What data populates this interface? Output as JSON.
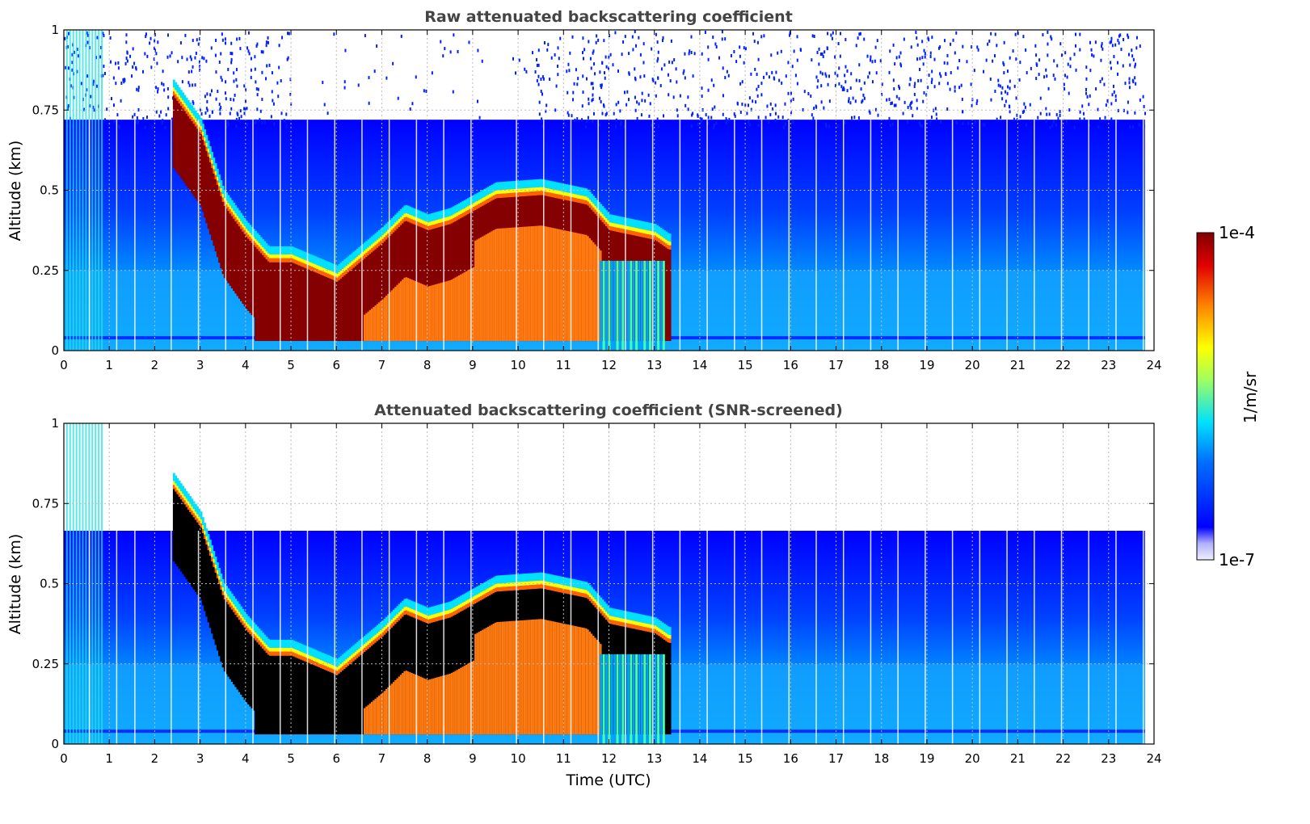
{
  "chart_data": [
    {
      "type": "heatmap",
      "title": "Raw attenuated backscattering coefficient",
      "xlabel": "",
      "ylabel": "Altitude (km)",
      "xlim": [
        0,
        24
      ],
      "ylim": [
        0,
        1
      ],
      "x_ticks": [
        "0",
        "1",
        "2",
        "3",
        "4",
        "5",
        "6",
        "7",
        "8",
        "9",
        "10",
        "11",
        "12",
        "13",
        "14",
        "15",
        "16",
        "17",
        "18",
        "19",
        "20",
        "21",
        "22",
        "23",
        "24"
      ],
      "y_ticks": [
        "0",
        "0.25",
        "0.5",
        "0.75",
        "1"
      ],
      "grid": true,
      "screened": false,
      "boundary_layer_top_km": [
        {
          "t": 2.4,
          "z": 0.82
        },
        {
          "t": 3.0,
          "z": 0.7
        },
        {
          "t": 3.5,
          "z": 0.48
        },
        {
          "t": 4.0,
          "z": 0.38
        },
        {
          "t": 4.5,
          "z": 0.3
        },
        {
          "t": 5.0,
          "z": 0.3
        },
        {
          "t": 5.5,
          "z": 0.27
        },
        {
          "t": 6.0,
          "z": 0.24
        },
        {
          "t": 6.5,
          "z": 0.3
        },
        {
          "t": 7.0,
          "z": 0.36
        },
        {
          "t": 7.5,
          "z": 0.43
        },
        {
          "t": 8.0,
          "z": 0.4
        },
        {
          "t": 8.5,
          "z": 0.42
        },
        {
          "t": 9.0,
          "z": 0.46
        },
        {
          "t": 9.5,
          "z": 0.5
        },
        {
          "t": 10.5,
          "z": 0.51
        },
        {
          "t": 11.5,
          "z": 0.48
        },
        {
          "t": 12.0,
          "z": 0.4
        },
        {
          "t": 13.0,
          "z": 0.37
        },
        {
          "t": 13.3,
          "z": 0.34
        }
      ]
    },
    {
      "type": "heatmap",
      "title": "Attenuated backscattering coefficient (SNR-screened)",
      "xlabel": "Time (UTC)",
      "ylabel": "Altitude (km)",
      "xlim": [
        0,
        24
      ],
      "ylim": [
        0,
        1
      ],
      "x_ticks": [
        "0",
        "1",
        "2",
        "3",
        "4",
        "5",
        "6",
        "7",
        "8",
        "9",
        "10",
        "11",
        "12",
        "13",
        "14",
        "15",
        "16",
        "17",
        "18",
        "19",
        "20",
        "21",
        "22",
        "23",
        "24"
      ],
      "y_ticks": [
        "0",
        "0.25",
        "0.5",
        "0.75",
        "1"
      ],
      "grid": true,
      "screened": true,
      "screen_top_km": 0.665
    }
  ],
  "colorbar": {
    "label": "1/m/sr",
    "max_label": "1e-4",
    "min_label": "1e-7",
    "scale": "log"
  }
}
